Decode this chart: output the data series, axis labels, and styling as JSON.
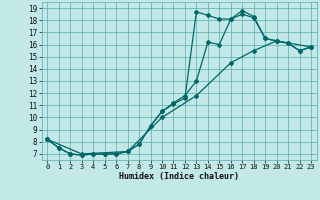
{
  "xlabel": "Humidex (Indice chaleur)",
  "xlim": [
    -0.5,
    23.5
  ],
  "ylim": [
    6.5,
    19.5
  ],
  "xticks": [
    0,
    1,
    2,
    3,
    4,
    5,
    6,
    7,
    8,
    9,
    10,
    11,
    12,
    13,
    14,
    15,
    16,
    17,
    18,
    19,
    20,
    21,
    22,
    23
  ],
  "yticks": [
    7,
    8,
    9,
    10,
    11,
    12,
    13,
    14,
    15,
    16,
    17,
    18,
    19
  ],
  "bg_color": "#c2e8e8",
  "grid_color": "#5aacac",
  "line_color": "#006868",
  "line1_x": [
    0,
    1,
    2,
    3,
    4,
    5,
    6,
    7,
    8,
    9,
    10,
    11,
    12,
    13,
    14,
    15,
    16,
    17,
    18,
    19,
    20,
    21,
    22,
    23
  ],
  "line1_y": [
    8.2,
    7.5,
    7.0,
    6.9,
    7.0,
    7.0,
    7.0,
    7.2,
    7.8,
    9.3,
    10.5,
    11.2,
    11.8,
    13.0,
    16.2,
    16.0,
    18.1,
    18.5,
    18.2,
    16.5,
    16.3,
    16.1,
    15.5,
    15.8
  ],
  "line2_x": [
    0,
    1,
    2,
    3,
    4,
    5,
    6,
    7,
    8,
    9,
    10,
    11,
    12,
    13,
    14,
    15,
    16,
    17,
    18,
    19,
    20,
    21,
    22,
    23
  ],
  "line2_y": [
    8.2,
    7.5,
    7.0,
    6.9,
    7.0,
    7.0,
    7.0,
    7.2,
    7.8,
    9.3,
    10.5,
    11.1,
    11.6,
    18.7,
    18.4,
    18.1,
    18.1,
    18.8,
    18.3,
    16.5,
    16.3,
    16.1,
    15.5,
    15.8
  ],
  "line3_x": [
    0,
    3,
    7,
    10,
    13,
    16,
    18,
    20,
    23
  ],
  "line3_y": [
    8.2,
    7.0,
    7.2,
    10.0,
    11.8,
    14.5,
    15.5,
    16.3,
    15.8
  ]
}
